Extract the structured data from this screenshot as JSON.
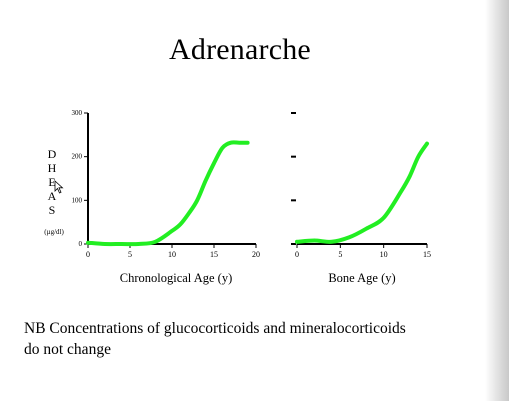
{
  "slide": {
    "title": "Adrenarche",
    "footnote_line1": "NB Concentrations of glucocorticoids and mineralocorticoids",
    "footnote_line2": "do not change"
  },
  "chart_data": [
    {
      "type": "line",
      "ylabel_letters": [
        "D",
        "H",
        "E",
        "A",
        "S"
      ],
      "yunit": "(µg/dl)",
      "xlabel": "Chronological Age (y)",
      "xlim": [
        0,
        20
      ],
      "ylim": [
        0,
        300
      ],
      "xticks": [
        0,
        5,
        10,
        15,
        20
      ],
      "yticks": [
        0,
        100,
        200,
        300
      ],
      "grid": false,
      "line_color": "#22ee22",
      "x": [
        0,
        2,
        4,
        6,
        8,
        10,
        11,
        12,
        13,
        14,
        15,
        16,
        17,
        18,
        19
      ],
      "y": [
        3,
        0,
        0,
        0,
        5,
        30,
        45,
        70,
        100,
        145,
        185,
        220,
        232,
        232,
        232
      ]
    },
    {
      "type": "line",
      "xlabel": "Bone Age (y)",
      "xlim": [
        0,
        15
      ],
      "ylim": [
        0,
        300
      ],
      "xticks": [
        0,
        5,
        10,
        15
      ],
      "grid": false,
      "line_color": "#22ee22",
      "x": [
        0,
        2,
        4,
        6,
        8,
        10,
        12,
        13,
        14,
        15
      ],
      "y": [
        5,
        8,
        5,
        15,
        35,
        60,
        120,
        155,
        200,
        230
      ]
    }
  ]
}
